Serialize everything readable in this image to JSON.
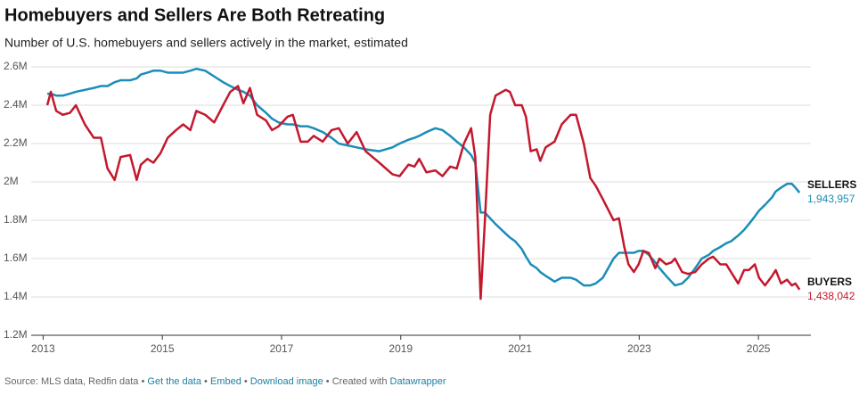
{
  "chart_data": {
    "type": "line",
    "title": "Homebuyers and Sellers Are Both Retreating",
    "subtitle": "Number of U.S. homebuyers and sellers actively in the market, estimated",
    "x": [
      2013.07,
      2013.13,
      2013.22,
      2013.33,
      2013.45,
      2013.55,
      2013.7,
      2013.85,
      2013.97,
      2014.08,
      2014.2,
      2014.3,
      2014.46,
      2014.57,
      2014.64,
      2014.75,
      2014.85,
      2014.97,
      2015.09,
      2015.23,
      2015.35,
      2015.47,
      2015.57,
      2015.72,
      2015.87,
      2016.02,
      2016.14,
      2016.27,
      2016.36,
      2016.47,
      2016.59,
      2016.74,
      2016.84,
      2016.95,
      2017.1,
      2017.19,
      2017.32,
      2017.44,
      2017.54,
      2017.69,
      2017.84,
      2017.96,
      2018.11,
      2018.26,
      2018.41,
      2018.64,
      2018.86,
      2018.98,
      2019.13,
      2019.23,
      2019.31,
      2019.43,
      2019.58,
      2019.7,
      2019.83,
      2019.94,
      2020.06,
      2020.18,
      2020.25,
      2020.34,
      2020.41,
      2020.5,
      2020.59,
      2020.76,
      2020.83,
      2020.92,
      2021.03,
      2021.1,
      2021.18,
      2021.28,
      2021.34,
      2021.43,
      2021.58,
      2021.7,
      2021.85,
      2021.94,
      2022.07,
      2022.18,
      2022.27,
      2022.39,
      2022.57,
      2022.66,
      2022.75,
      2022.82,
      2022.91,
      2022.99,
      2023.07,
      2023.16,
      2023.27,
      2023.34,
      2023.45,
      2023.54,
      2023.6,
      2023.72,
      2023.82,
      2023.94,
      2024.05,
      2024.17,
      2024.24,
      2024.36,
      2024.46,
      2024.54,
      2024.66,
      2024.76,
      2024.84,
      2024.94,
      2025.01,
      2025.11,
      2025.23,
      2025.29,
      2025.38,
      2025.48,
      2025.56,
      2025.62,
      2025.69
    ],
    "series": [
      {
        "name": "SELLERS",
        "color": "#1b8db8",
        "values": [
          2460000,
          2460000,
          2450000,
          2450000,
          2460000,
          2470000,
          2480000,
          2490000,
          2500000,
          2500000,
          2520000,
          2530000,
          2530000,
          2540000,
          2560000,
          2570000,
          2580000,
          2580000,
          2570000,
          2570000,
          2570000,
          2580000,
          2590000,
          2580000,
          2550000,
          2520000,
          2500000,
          2480000,
          2470000,
          2450000,
          2400000,
          2360000,
          2330000,
          2310000,
          2300000,
          2300000,
          2290000,
          2290000,
          2280000,
          2260000,
          2230000,
          2200000,
          2190000,
          2180000,
          2170000,
          2160000,
          2180000,
          2200000,
          2220000,
          2230000,
          2240000,
          2260000,
          2280000,
          2270000,
          2240000,
          2210000,
          2180000,
          2140000,
          2100000,
          1840000,
          1840000,
          1810000,
          1780000,
          1730000,
          1710000,
          1690000,
          1650000,
          1610000,
          1570000,
          1550000,
          1530000,
          1510000,
          1480000,
          1500000,
          1500000,
          1490000,
          1460000,
          1460000,
          1470000,
          1500000,
          1600000,
          1630000,
          1630000,
          1630000,
          1630000,
          1640000,
          1640000,
          1620000,
          1580000,
          1550000,
          1510000,
          1480000,
          1460000,
          1470000,
          1500000,
          1550000,
          1600000,
          1620000,
          1640000,
          1660000,
          1680000,
          1690000,
          1720000,
          1750000,
          1780000,
          1820000,
          1850000,
          1880000,
          1920000,
          1950000,
          1970000,
          1990000,
          1990000,
          1970000,
          1943957
        ],
        "value_labels": [
          null,
          null,
          null,
          null,
          null,
          null,
          null,
          null,
          null,
          null,
          null,
          null,
          null,
          null,
          null,
          null,
          null,
          null,
          null,
          null,
          null,
          null,
          null,
          null,
          null,
          null,
          null,
          null,
          null,
          null,
          null,
          null,
          null,
          null,
          null,
          null,
          null,
          null,
          null,
          null,
          null,
          null,
          null,
          null,
          null,
          null,
          null,
          null,
          null,
          null,
          null,
          null,
          null,
          null,
          null,
          null,
          null,
          null,
          null,
          null,
          null,
          null,
          null,
          null,
          null,
          null,
          null,
          null,
          null,
          null,
          null,
          null,
          null,
          null,
          null,
          null,
          null,
          null,
          null,
          null,
          null,
          null,
          null,
          null,
          null,
          null,
          null,
          null,
          null,
          null,
          null,
          null,
          null,
          null,
          null,
          null,
          null,
          null,
          null,
          null,
          null,
          null,
          null,
          null,
          null,
          null,
          null,
          null,
          null,
          null,
          null,
          null,
          null,
          null,
          "1,943,957"
        ]
      },
      {
        "name": "BUYERS",
        "color": "#c3182d",
        "values": [
          2400000,
          2470000,
          2370000,
          2350000,
          2360000,
          2400000,
          2300000,
          2230000,
          2230000,
          2070000,
          2010000,
          2130000,
          2140000,
          2010000,
          2090000,
          2120000,
          2100000,
          2150000,
          2230000,
          2270000,
          2300000,
          2270000,
          2370000,
          2350000,
          2310000,
          2400000,
          2470000,
          2500000,
          2410000,
          2490000,
          2350000,
          2320000,
          2270000,
          2290000,
          2340000,
          2350000,
          2210000,
          2210000,
          2240000,
          2210000,
          2270000,
          2280000,
          2200000,
          2260000,
          2160000,
          2100000,
          2040000,
          2030000,
          2090000,
          2080000,
          2120000,
          2050000,
          2060000,
          2030000,
          2080000,
          2070000,
          2200000,
          2280000,
          2130000,
          1390000,
          1790000,
          2350000,
          2450000,
          2480000,
          2470000,
          2400000,
          2400000,
          2340000,
          2160000,
          2170000,
          2110000,
          2180000,
          2210000,
          2300000,
          2350000,
          2350000,
          2200000,
          2020000,
          1980000,
          1910000,
          1800000,
          1810000,
          1660000,
          1570000,
          1530000,
          1570000,
          1640000,
          1630000,
          1550000,
          1600000,
          1570000,
          1580000,
          1600000,
          1530000,
          1520000,
          1530000,
          1570000,
          1600000,
          1610000,
          1570000,
          1570000,
          1530000,
          1470000,
          1540000,
          1540000,
          1570000,
          1500000,
          1460000,
          1510000,
          1540000,
          1470000,
          1490000,
          1460000,
          1470000,
          1438042
        ],
        "value_labels": [
          null,
          null,
          null,
          null,
          null,
          null,
          null,
          null,
          null,
          null,
          null,
          null,
          null,
          null,
          null,
          null,
          null,
          null,
          null,
          null,
          null,
          null,
          null,
          null,
          null,
          null,
          null,
          null,
          null,
          null,
          null,
          null,
          null,
          null,
          null,
          null,
          null,
          null,
          null,
          null,
          null,
          null,
          null,
          null,
          null,
          null,
          null,
          null,
          null,
          null,
          null,
          null,
          null,
          null,
          null,
          null,
          null,
          null,
          null,
          null,
          null,
          null,
          null,
          null,
          null,
          null,
          null,
          null,
          null,
          null,
          null,
          null,
          null,
          null,
          null,
          null,
          null,
          null,
          null,
          null,
          null,
          null,
          null,
          null,
          null,
          null,
          null,
          null,
          null,
          null,
          null,
          null,
          null,
          null,
          null,
          null,
          null,
          null,
          null,
          null,
          null,
          null,
          null,
          null,
          null,
          null,
          null,
          null,
          null,
          null,
          null,
          null,
          null,
          null,
          "1,438,042"
        ]
      }
    ],
    "xlim": [
      2012.8,
      2025.88
    ],
    "xticks": [
      2013,
      2015,
      2017,
      2019,
      2021,
      2023,
      2025
    ],
    "ylim": [
      1200000,
      2600000
    ],
    "yticks": [
      {
        "value": 1200000,
        "label": "1.2M"
      },
      {
        "value": 1400000,
        "label": "1.4M"
      },
      {
        "value": 1600000,
        "label": "1.6M"
      },
      {
        "value": 1800000,
        "label": "1.8M"
      },
      {
        "value": 2000000,
        "label": "2M"
      },
      {
        "value": 2200000,
        "label": "2.2M"
      },
      {
        "value": 2400000,
        "label": "2.4M"
      },
      {
        "value": 2600000,
        "label": "2.6M"
      }
    ],
    "grid": true,
    "footer": {
      "source": "Source: MLS data, Redfin data",
      "separator": "•",
      "links": [
        "Get the data",
        "Embed",
        "Download image"
      ],
      "credit": "Created with",
      "credit_link": "Datawrapper"
    }
  }
}
